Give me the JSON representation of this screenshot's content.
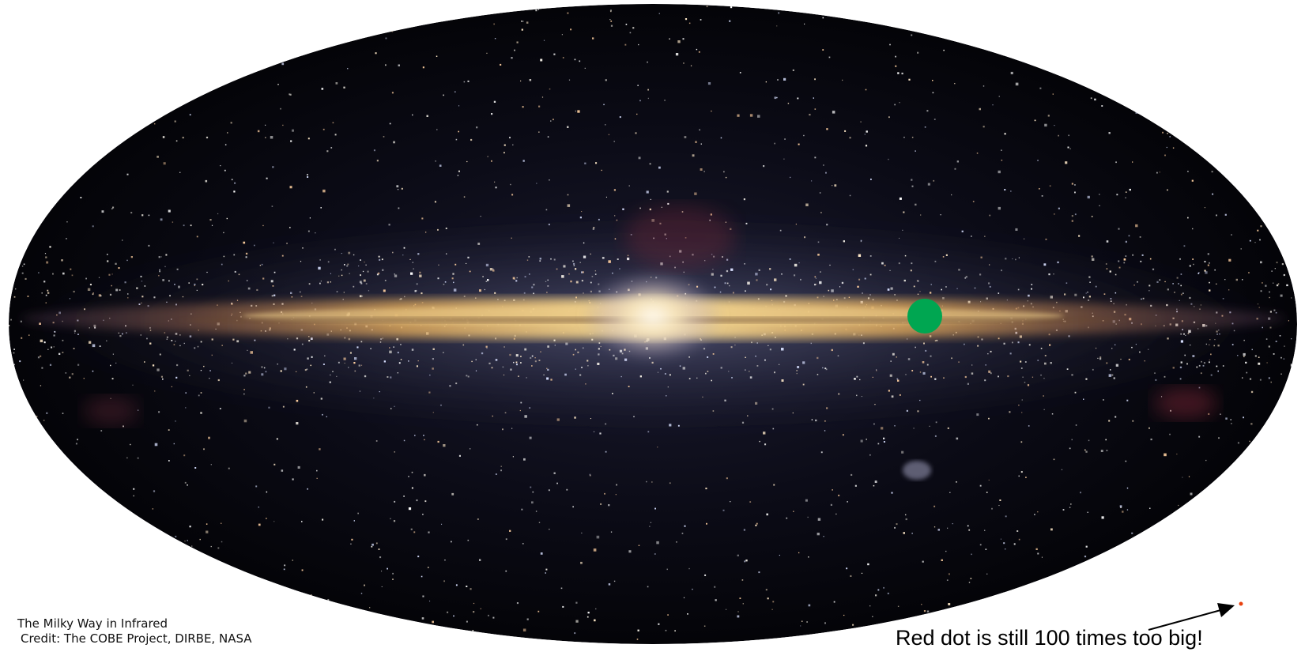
{
  "image": {
    "subject": "milky-way-infrared-all-sky",
    "caption": {
      "title": "The Milky Way in Infrared",
      "credit": "Credit: The COBE Project,  DIRBE, NASA"
    },
    "annotation": {
      "text": "Red dot is still 100 times too big!",
      "arrow_icon": "arrow-icon"
    },
    "markers": [
      {
        "name": "green-dot",
        "color": "#00a651"
      },
      {
        "name": "red-dot",
        "color": "#e8410f"
      }
    ],
    "colors": {
      "sky": "#06060c",
      "band_core": "#f3d68a",
      "band_edge": "#c77a3a",
      "bulge": "#fff4dc",
      "stars": "#ffffff"
    }
  }
}
